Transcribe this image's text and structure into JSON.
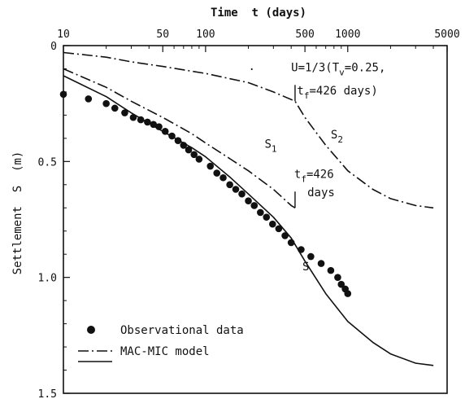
{
  "chart_data": {
    "type": "line",
    "title": "",
    "xlabel": "Time  t (days)",
    "ylabel": "Settlement  S  (m)",
    "xscale": "log",
    "xlim": [
      10,
      5000
    ],
    "ylim": [
      0,
      1.5
    ],
    "y_inverted": true,
    "x_axis_position": "top",
    "x_ticks": [
      10,
      50,
      100,
      500,
      1000,
      5000
    ],
    "x_tick_labels": [
      "10",
      "50",
      "100",
      "500",
      "1000",
      "5000"
    ],
    "y_ticks": [
      0,
      0.5,
      1.0,
      1.5
    ],
    "y_tick_labels": [
      "0",
      "0.5",
      "1.0",
      "1.5"
    ],
    "grid": false,
    "legend": {
      "position": "bottom-left",
      "entries": [
        {
          "marker": "dot",
          "label": "Observational data"
        },
        {
          "marker": "dash-dot",
          "label": "MAC-MIC model"
        },
        {
          "marker": "solid",
          "label": ""
        }
      ]
    },
    "series": [
      {
        "name": "",
        "style": "solid",
        "points": [
          [
            10,
            0.13
          ],
          [
            20,
            0.22
          ],
          [
            30,
            0.29
          ],
          [
            50,
            0.37
          ],
          [
            80,
            0.44
          ],
          [
            100,
            0.48
          ],
          [
            150,
            0.57
          ],
          [
            200,
            0.64
          ],
          [
            300,
            0.74
          ],
          [
            400,
            0.83
          ],
          [
            500,
            0.93
          ],
          [
            700,
            1.07
          ],
          [
            1000,
            1.19
          ],
          [
            1500,
            1.28
          ],
          [
            2000,
            1.33
          ],
          [
            3000,
            1.37
          ],
          [
            4000,
            1.38
          ]
        ]
      },
      {
        "name": "",
        "style": "dash-dot",
        "points": [
          [
            10,
            0.1
          ],
          [
            20,
            0.18
          ],
          [
            30,
            0.24
          ],
          [
            50,
            0.31
          ],
          [
            80,
            0.38
          ],
          [
            100,
            0.42
          ],
          [
            150,
            0.49
          ],
          [
            200,
            0.54
          ],
          [
            300,
            0.62
          ],
          [
            400,
            0.69
          ],
          [
            426,
            0.7
          ]
        ]
      },
      {
        "name": "",
        "style": "dash-dot",
        "points": [
          [
            10,
            0.03
          ],
          [
            20,
            0.05
          ],
          [
            30,
            0.07
          ],
          [
            50,
            0.09
          ],
          [
            100,
            0.12
          ],
          [
            200,
            0.16
          ],
          [
            300,
            0.2
          ],
          [
            426,
            0.24
          ],
          [
            500,
            0.31
          ],
          [
            700,
            0.43
          ],
          [
            1000,
            0.54
          ],
          [
            1500,
            0.62
          ],
          [
            2000,
            0.66
          ],
          [
            3000,
            0.69
          ],
          [
            4000,
            0.7
          ]
        ]
      },
      {
        "name": "Observational data",
        "style": "dots",
        "points": [
          [
            10,
            0.21
          ],
          [
            15,
            0.23
          ],
          [
            20,
            0.25
          ],
          [
            23,
            0.27
          ],
          [
            27,
            0.29
          ],
          [
            31,
            0.31
          ],
          [
            35,
            0.32
          ],
          [
            39,
            0.33
          ],
          [
            43,
            0.34
          ],
          [
            47,
            0.35
          ],
          [
            52,
            0.37
          ],
          [
            58,
            0.39
          ],
          [
            64,
            0.41
          ],
          [
            70,
            0.43
          ],
          [
            76,
            0.45
          ],
          [
            83,
            0.47
          ],
          [
            90,
            0.49
          ],
          [
            108,
            0.52
          ],
          [
            120,
            0.55
          ],
          [
            133,
            0.57
          ],
          [
            148,
            0.6
          ],
          [
            163,
            0.62
          ],
          [
            180,
            0.64
          ],
          [
            200,
            0.67
          ],
          [
            220,
            0.69
          ],
          [
            243,
            0.72
          ],
          [
            268,
            0.74
          ],
          [
            296,
            0.77
          ],
          [
            327,
            0.79
          ],
          [
            362,
            0.82
          ],
          [
            400,
            0.85
          ],
          [
            470,
            0.88
          ],
          [
            550,
            0.91
          ],
          [
            650,
            0.94
          ],
          [
            760,
            0.97
          ],
          [
            850,
            1.0
          ],
          [
            900,
            1.03
          ],
          [
            960,
            1.05
          ],
          [
            1000,
            1.07
          ]
        ]
      }
    ],
    "annotations": [
      {
        "id": "s_label",
        "text": "S",
        "at": [
          480,
          0.97
        ]
      },
      {
        "id": "s1_label",
        "text": "S",
        "sub": "1",
        "at": [
          260,
          0.44
        ]
      },
      {
        "id": "s2_label",
        "text": "S",
        "sub": "2",
        "at": [
          760,
          0.4
        ]
      },
      {
        "id": "u_line1",
        "pre": "U=1/3(T",
        "sub": "v",
        "post": "=0.25,",
        "at": [
          400,
          0.11
        ]
      },
      {
        "id": "u_line2",
        "pre": "t",
        "sub": "f",
        "post": "=426 days)",
        "at": [
          440,
          0.21
        ]
      },
      {
        "id": "tf_line1",
        "pre": "t",
        "sub": "f",
        "post": "=426",
        "at": [
          420,
          0.57
        ]
      },
      {
        "id": "tf_line2",
        "text": "days",
        "at": [
          520,
          0.65
        ]
      },
      {
        "id": "stray_dot",
        "text": "·",
        "at": [
          200,
          0.12
        ]
      }
    ]
  }
}
